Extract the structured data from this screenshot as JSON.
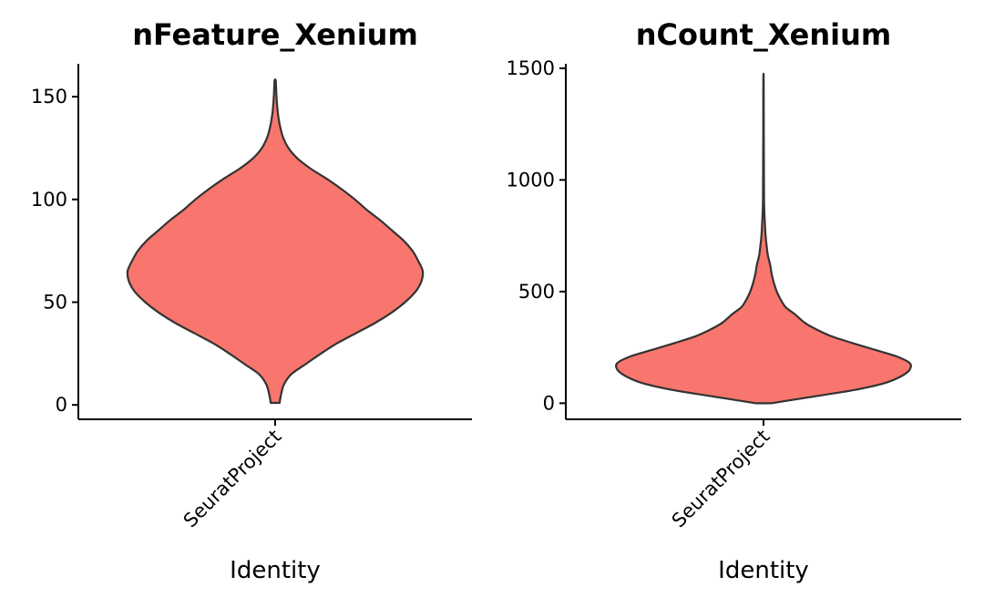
{
  "chart_data": [
    {
      "type": "violin",
      "title": "nFeature_Xenium",
      "xlabel": "Identity",
      "ylabel": "",
      "categories": [
        "SeuratProject"
      ],
      "ylim": [
        -7,
        166
      ],
      "yticks": [
        0,
        50,
        100,
        150
      ],
      "fill_color": "#F8766D",
      "outline_color": "#333333",
      "density": [
        [
          1,
          0.03
        ],
        [
          5,
          0.04
        ],
        [
          10,
          0.06
        ],
        [
          15,
          0.11
        ],
        [
          20,
          0.21
        ],
        [
          25,
          0.31
        ],
        [
          30,
          0.42
        ],
        [
          35,
          0.55
        ],
        [
          40,
          0.68
        ],
        [
          45,
          0.79
        ],
        [
          50,
          0.88
        ],
        [
          55,
          0.95
        ],
        [
          60,
          0.99
        ],
        [
          65,
          1.0
        ],
        [
          70,
          0.97
        ],
        [
          75,
          0.93
        ],
        [
          80,
          0.87
        ],
        [
          85,
          0.79
        ],
        [
          90,
          0.71
        ],
        [
          95,
          0.62
        ],
        [
          100,
          0.54
        ],
        [
          105,
          0.45
        ],
        [
          110,
          0.35
        ],
        [
          115,
          0.24
        ],
        [
          120,
          0.15
        ],
        [
          125,
          0.09
        ],
        [
          130,
          0.055
        ],
        [
          135,
          0.035
        ],
        [
          140,
          0.022
        ],
        [
          145,
          0.014
        ],
        [
          150,
          0.009
        ],
        [
          155,
          0.006
        ],
        [
          158,
          0.004
        ]
      ]
    },
    {
      "type": "violin",
      "title": "nCount_Xenium",
      "xlabel": "Identity",
      "ylabel": "",
      "categories": [
        "SeuratProject"
      ],
      "ylim": [
        -72,
        1520
      ],
      "yticks": [
        0,
        500,
        1000,
        1500
      ],
      "fill_color": "#F8766D",
      "outline_color": "#333333",
      "density": [
        [
          0,
          0.05
        ],
        [
          30,
          0.34
        ],
        [
          60,
          0.62
        ],
        [
          90,
          0.82
        ],
        [
          120,
          0.93
        ],
        [
          150,
          0.99
        ],
        [
          180,
          0.99
        ],
        [
          210,
          0.9
        ],
        [
          240,
          0.75
        ],
        [
          270,
          0.6
        ],
        [
          300,
          0.46
        ],
        [
          330,
          0.36
        ],
        [
          360,
          0.28
        ],
        [
          400,
          0.21
        ],
        [
          430,
          0.15
        ],
        [
          460,
          0.12
        ],
        [
          500,
          0.09
        ],
        [
          540,
          0.07
        ],
        [
          580,
          0.055
        ],
        [
          620,
          0.045
        ],
        [
          660,
          0.03
        ],
        [
          700,
          0.022
        ],
        [
          750,
          0.014
        ],
        [
          800,
          0.01
        ],
        [
          850,
          0.006
        ],
        [
          900,
          0.004
        ],
        [
          1000,
          0.003
        ],
        [
          1200,
          0.002
        ],
        [
          1445,
          0.001
        ]
      ]
    }
  ]
}
